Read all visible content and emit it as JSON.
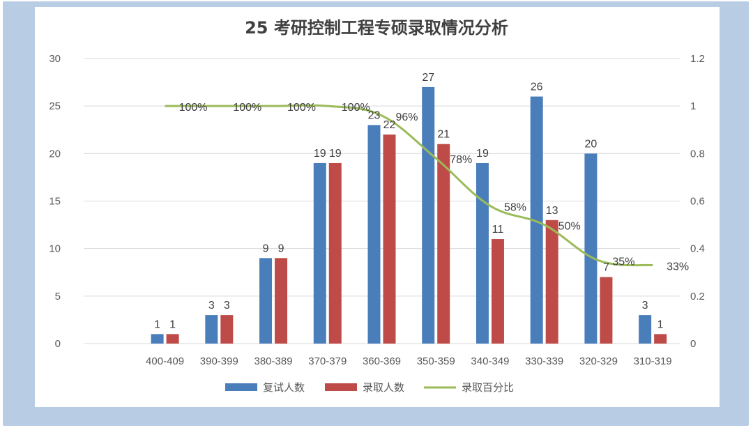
{
  "chart_data": {
    "type": "bar",
    "title": "25 考研控制工程专硕录取情况分析",
    "categories": [
      "400-409",
      "390-399",
      "380-389",
      "370-379",
      "360-369",
      "350-359",
      "340-349",
      "330-339",
      "320-329",
      "310-319"
    ],
    "series": [
      {
        "name": "复试人数",
        "values": [
          1,
          3,
          9,
          19,
          23,
          27,
          19,
          26,
          20,
          3
        ],
        "color": "#4a7ebb"
      },
      {
        "name": "录取人数",
        "values": [
          1,
          3,
          9,
          19,
          22,
          21,
          11,
          13,
          7,
          1
        ],
        "color": "#be4b48"
      }
    ],
    "line_series": {
      "name": "录取百分比",
      "values": [
        1,
        1,
        1,
        1,
        0.96,
        0.78,
        0.58,
        0.5,
        0.35,
        0.33
      ],
      "labels": [
        "100%",
        "100%",
        "100%",
        "100%",
        "96%",
        "78%",
        "58%",
        "50%",
        "35%",
        "33%"
      ],
      "color": "#9bbb59"
    },
    "ylim": [
      0,
      30
    ],
    "yticks": [
      "0",
      "5",
      "10",
      "15",
      "20",
      "25",
      "30"
    ],
    "y2lim": [
      0,
      1.2
    ],
    "y2ticks": [
      "0",
      "0.2",
      "0.4",
      "0.6",
      "0.8",
      "1",
      "1.2"
    ],
    "legend_position": "bottom"
  }
}
